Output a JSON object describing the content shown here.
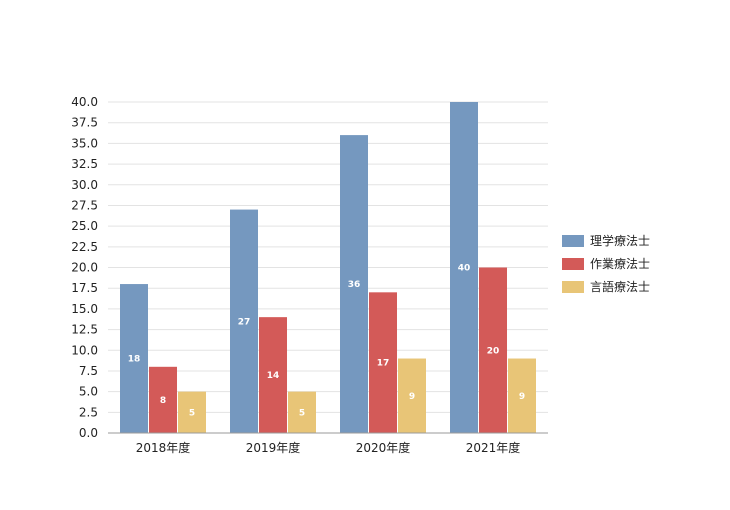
{
  "chart_data": {
    "type": "bar",
    "categories": [
      "2018年度",
      "2019年度",
      "2020年度",
      "2021年度"
    ],
    "series": [
      {
        "name": "理学療法士",
        "values": [
          18,
          27,
          36,
          40
        ],
        "color": "#7598bf"
      },
      {
        "name": "作業療法士",
        "values": [
          8,
          14,
          17,
          20
        ],
        "color": "#d35a58"
      },
      {
        "name": "言語療法士",
        "values": [
          5,
          5,
          9,
          9
        ],
        "color": "#e8c577"
      }
    ],
    "ylim": [
      0,
      40
    ],
    "ytick_step": 2.5,
    "ytick_decimals": 1,
    "grid": true,
    "legend_position": "right",
    "show_data_labels": true
  }
}
